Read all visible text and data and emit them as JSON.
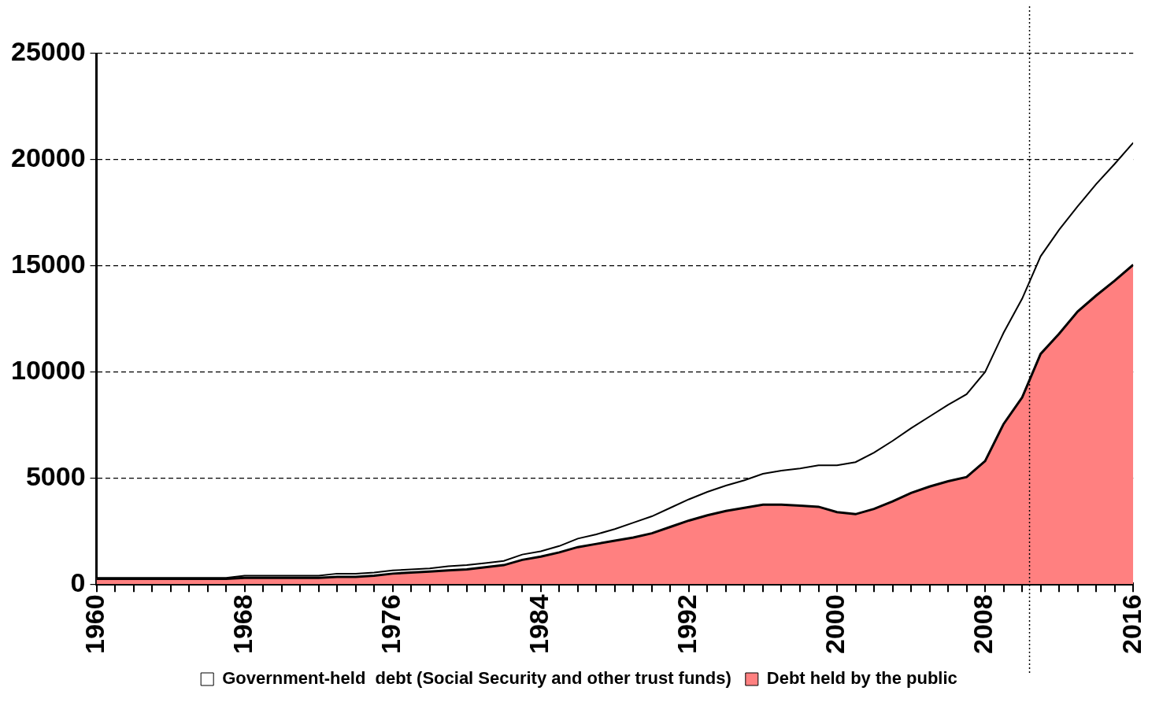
{
  "chart_data": {
    "type": "area",
    "stacked": true,
    "x": [
      1960,
      1961,
      1962,
      1963,
      1964,
      1965,
      1966,
      1967,
      1968,
      1969,
      1970,
      1971,
      1972,
      1973,
      1974,
      1975,
      1976,
      1977,
      1978,
      1979,
      1980,
      1981,
      1982,
      1983,
      1984,
      1985,
      1986,
      1987,
      1988,
      1989,
      1990,
      1991,
      1992,
      1993,
      1994,
      1995,
      1996,
      1997,
      1998,
      1999,
      2000,
      2001,
      2002,
      2003,
      2004,
      2005,
      2006,
      2007,
      2008,
      2009,
      2010,
      2011,
      2012,
      2013,
      2014,
      2015,
      2016
    ],
    "series": [
      {
        "name": "Debt held by the public",
        "color": "#ff8080",
        "values": [
          250,
          250,
          250,
          250,
          250,
          250,
          250,
          250,
          300,
          300,
          300,
          300,
          300,
          350,
          350,
          400,
          500,
          550,
          600,
          650,
          700,
          800,
          900,
          1150,
          1300,
          1500,
          1750,
          1900,
          2050,
          2200,
          2400,
          2700,
          3000,
          3250,
          3450,
          3600,
          3750,
          3750,
          3700,
          3650,
          3400,
          3300,
          3550,
          3900,
          4300,
          4600,
          4850,
          5050,
          5800,
          7550,
          8800,
          10850,
          11800,
          12850,
          13600,
          14300,
          15050
        ]
      },
      {
        "name": "Government-held  debt (Social Security and other trust funds)",
        "color": "#ffffff",
        "values": [
          50,
          50,
          50,
          50,
          50,
          50,
          50,
          50,
          100,
          100,
          100,
          100,
          100,
          150,
          150,
          150,
          150,
          150,
          150,
          200,
          200,
          200,
          200,
          250,
          250,
          300,
          400,
          450,
          550,
          700,
          800,
          900,
          1000,
          1100,
          1200,
          1300,
          1450,
          1600,
          1750,
          1950,
          2200,
          2450,
          2650,
          2850,
          3050,
          3300,
          3600,
          3900,
          4200,
          4300,
          4650,
          4600,
          4900,
          4950,
          5250,
          5500,
          5750
        ]
      }
    ],
    "xlim": [
      1960,
      2016
    ],
    "xticks": [
      1960,
      {
        "value": 1961,
        "label": null
      },
      {
        "value": 1962,
        "label": null
      },
      {
        "value": 1963,
        "label": null
      },
      {
        "value": 1964,
        "label": null
      },
      {
        "value": 1965,
        "label": null
      },
      {
        "value": 1966,
        "label": null
      },
      {
        "value": 1967,
        "label": null
      },
      1968,
      {
        "value": 1969,
        "label": null
      },
      {
        "value": 1970,
        "label": null
      },
      {
        "value": 1971,
        "label": null
      },
      {
        "value": 1972,
        "label": null
      },
      {
        "value": 1973,
        "label": null
      },
      {
        "value": 1974,
        "label": null
      },
      {
        "value": 1975,
        "label": null
      },
      1976,
      {
        "value": 1977,
        "label": null
      },
      {
        "value": 1978,
        "label": null
      },
      {
        "value": 1979,
        "label": null
      },
      {
        "value": 1980,
        "label": null
      },
      {
        "value": 1981,
        "label": null
      },
      {
        "value": 1982,
        "label": null
      },
      {
        "value": 1983,
        "label": null
      },
      1984,
      {
        "value": 1985,
        "label": null
      },
      {
        "value": 1986,
        "label": null
      },
      {
        "value": 1987,
        "label": null
      },
      {
        "value": 1988,
        "label": null
      },
      {
        "value": 1989,
        "label": null
      },
      {
        "value": 1990,
        "label": null
      },
      {
        "value": 1991,
        "label": null
      },
      1992,
      {
        "value": 1993,
        "label": null
      },
      {
        "value": 1994,
        "label": null
      },
      {
        "value": 1995,
        "label": null
      },
      {
        "value": 1996,
        "label": null
      },
      {
        "value": 1997,
        "label": null
      },
      {
        "value": 1998,
        "label": null
      },
      {
        "value": 1999,
        "label": null
      },
      2000,
      {
        "value": 2001,
        "label": null
      },
      {
        "value": 2002,
        "label": null
      },
      {
        "value": 2003,
        "label": null
      },
      {
        "value": 2004,
        "label": null
      },
      {
        "value": 2005,
        "label": null
      },
      {
        "value": 2006,
        "label": null
      },
      {
        "value": 2007,
        "label": null
      },
      2008,
      {
        "value": 2009,
        "label": null
      },
      {
        "value": 2010,
        "label": null
      },
      {
        "value": 2011,
        "label": null
      },
      {
        "value": 2012,
        "label": null
      },
      {
        "value": 2013,
        "label": null
      },
      {
        "value": 2014,
        "label": null
      },
      {
        "value": 2015,
        "label": null
      },
      2016
    ],
    "ylim": [
      0,
      25000
    ],
    "yticks": [
      0,
      5000,
      10000,
      15000,
      20000,
      25000
    ],
    "grid": "y",
    "legend": "bottom",
    "ref_lines": [
      {
        "axis": "x",
        "value": 2010.4,
        "line_style": "dotted",
        "color": "#000000"
      }
    ]
  }
}
